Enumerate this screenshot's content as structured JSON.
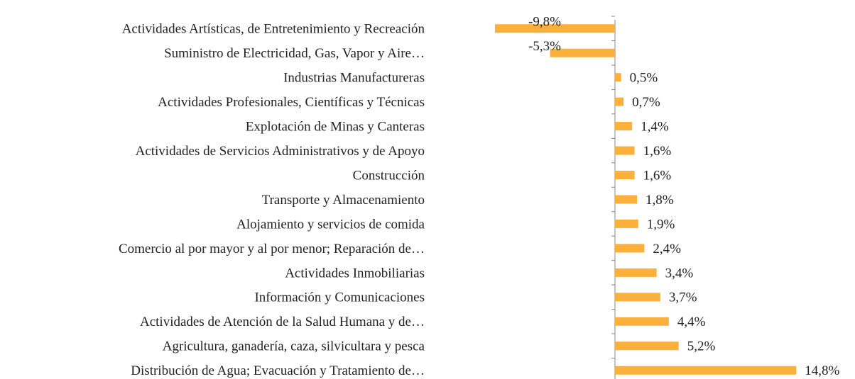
{
  "chart_data": {
    "type": "barh",
    "categories": [
      "Actividades Artísticas, de Entretenimiento y Recreación",
      "Suministro de Electricidad, Gas, Vapor y Aire…",
      "Industrias Manufactureras",
      "Actividades Profesionales, Científicas y Técnicas",
      "Explotación de Minas y Canteras",
      "Actividades de Servicios Administrativos y de Apoyo",
      "Construcción",
      "Transporte y Almacenamiento",
      "Alojamiento y servicios de comida",
      "Comercio al por mayor y al por menor; Reparación de…",
      "Actividades Inmobiliarias",
      "Información y Comunicaciones",
      "Actividades de Atención de la Salud Humana y de…",
      "Agricultura, ganadería, caza, silvicultara y pesca",
      "Distribución de Agua; Evacuación y Tratamiento de…"
    ],
    "values": [
      -9.8,
      -5.3,
      0.5,
      0.7,
      1.4,
      1.6,
      1.6,
      1.8,
      1.9,
      2.4,
      3.4,
      3.7,
      4.4,
      5.2,
      14.8
    ],
    "value_labels": [
      "-9,8%",
      "-5,3%",
      "0,5%",
      "0,7%",
      "1,4%",
      "1,6%",
      "1,6%",
      "1,8%",
      "1,9%",
      "2,4%",
      "3,4%",
      "3,7%",
      "4,4%",
      "5,2%",
      "14,8%"
    ],
    "color": "#fbb03b",
    "xlim": [
      -10,
      15
    ]
  }
}
